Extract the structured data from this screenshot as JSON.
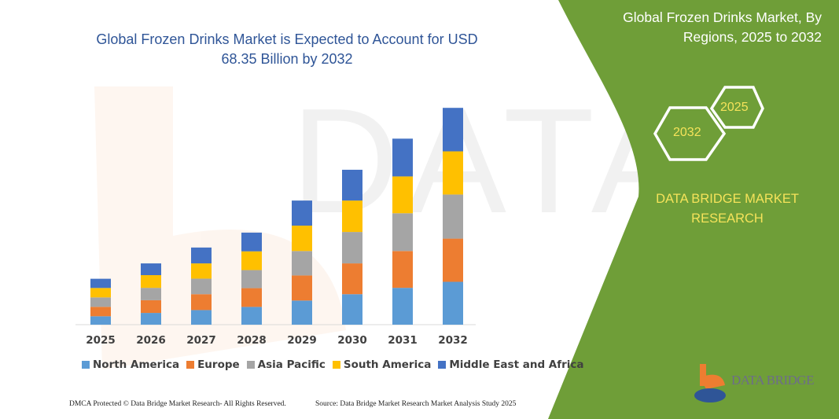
{
  "title": "Global Frozen Drinks Market is Expected to Account for USD 68.35 Billion by 2032",
  "right_panel": {
    "title": "Global Frozen Drinks Market, By Regions, 2025 to 2032",
    "hex_start": "2025",
    "hex_end": "2032",
    "brand": "DATA BRIDGE MARKET RESEARCH",
    "logo_text": "DATA BRIDGE",
    "green": "#6f9e38",
    "accent_text": "#f5e35a"
  },
  "footer": {
    "left": "DMCA Protected © Data Bridge Market Research- All Rights Reserved.",
    "right": "Source: Data Bridge Market Research Market Analysis Study 2025"
  },
  "chart_data": {
    "type": "bar",
    "stacked": true,
    "title": "Global Frozen Drinks Market is Expected to Account for USD 68.35 Billion by 2032",
    "xlabel": "",
    "ylabel": "",
    "ylim": [
      0,
      70
    ],
    "grid": false,
    "legend_placement": "bottom",
    "categories": [
      "2025",
      "2026",
      "2027",
      "2028",
      "2029",
      "2030",
      "2031",
      "2032"
    ],
    "series": [
      {
        "name": "North America",
        "color": "#5b9bd5",
        "values": [
          2.65,
          3.7,
          4.6,
          5.6,
          7.6,
          9.6,
          11.6,
          13.5
        ]
      },
      {
        "name": "Europe",
        "color": "#ed7d31",
        "values": [
          2.97,
          4.0,
          5.0,
          5.9,
          7.9,
          9.7,
          11.6,
          13.6
        ]
      },
      {
        "name": "Asia Pacific",
        "color": "#a5a5a5",
        "values": [
          2.97,
          3.9,
          4.9,
          5.7,
          7.7,
          9.9,
          11.9,
          13.9
        ]
      },
      {
        "name": "South America",
        "color": "#ffc000",
        "values": [
          2.97,
          4.0,
          4.8,
          5.9,
          8.0,
          9.9,
          11.6,
          13.6
        ]
      },
      {
        "name": "Middle East and Africa",
        "color": "#4472c4",
        "values": [
          2.9,
          3.7,
          5.0,
          5.9,
          7.9,
          9.7,
          11.9,
          13.7
        ]
      }
    ]
  }
}
